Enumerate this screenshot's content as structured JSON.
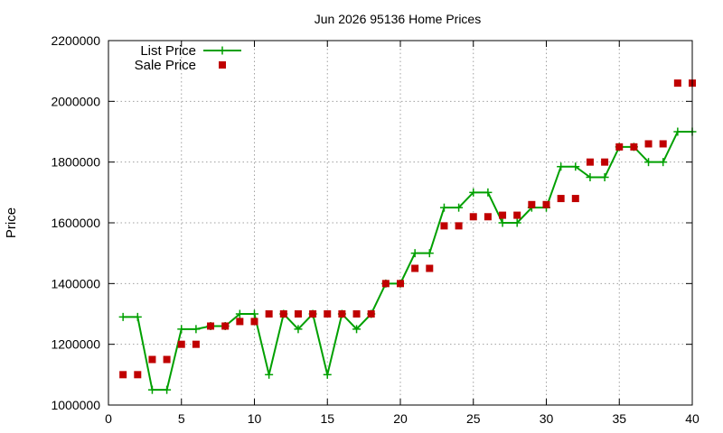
{
  "chart_data": {
    "type": "line",
    "title": "Jun 2026 95136 Home Prices",
    "xlabel": "",
    "ylabel": "Price",
    "xlim": [
      0,
      40
    ],
    "ylim": [
      1000000,
      2200000
    ],
    "xticks": [
      "0",
      "5",
      "10",
      "15",
      "20",
      "25",
      "30",
      "35",
      "40"
    ],
    "yticks": [
      "1000000",
      "1200000",
      "1400000",
      "1600000",
      "1800000",
      "2000000",
      "2200000"
    ],
    "grid": true,
    "legend_position": "top-left",
    "x": [
      1,
      2,
      3,
      4,
      5,
      6,
      7,
      8,
      9,
      10,
      11,
      12,
      13,
      14,
      15,
      16,
      17,
      18,
      19,
      20,
      21,
      22,
      23,
      24,
      25,
      26,
      27,
      28,
      29,
      30,
      31,
      32,
      33,
      34,
      35,
      36,
      37,
      38,
      39,
      40
    ],
    "series": [
      {
        "name": "List Price",
        "style": "line-plus",
        "color": "#00a000",
        "values": [
          1290000,
          1290000,
          1050000,
          1050000,
          1250000,
          1250000,
          1260000,
          1260000,
          1300000,
          1300000,
          1100000,
          1300000,
          1250000,
          1300000,
          1100000,
          1300000,
          1250000,
          1300000,
          1400000,
          1400000,
          1500000,
          1500000,
          1650000,
          1650000,
          1700000,
          1700000,
          1600000,
          1600000,
          1650000,
          1650000,
          1785000,
          1785000,
          1750000,
          1750000,
          1850000,
          1850000,
          1800000,
          1800000,
          1900000,
          1900000
        ]
      },
      {
        "name": "Sale Price",
        "style": "square-markers",
        "color": "#c00000",
        "values": [
          1100000,
          1100000,
          1150000,
          1150000,
          1200000,
          1200000,
          1260000,
          1260000,
          1275000,
          1275000,
          1300000,
          1300000,
          1300000,
          1300000,
          1300000,
          1300000,
          1300000,
          1300000,
          1400000,
          1400000,
          1450000,
          1450000,
          1590000,
          1590000,
          1620000,
          1620000,
          1625000,
          1625000,
          1660000,
          1660000,
          1680000,
          1680000,
          1800000,
          1800000,
          1850000,
          1850000,
          1860000,
          1860000,
          2060000,
          2060000
        ]
      }
    ]
  }
}
